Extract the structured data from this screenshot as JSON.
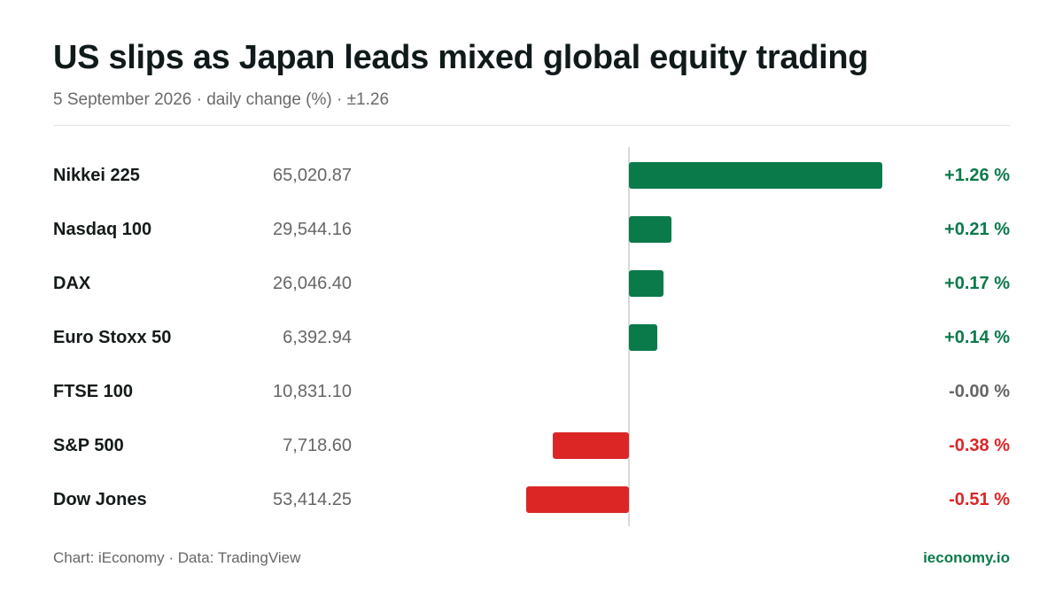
{
  "title": "US slips as Japan leads mixed global equity trading",
  "subtitle": "5 September 2026 · daily change (%) · ±1.26",
  "footer": {
    "source": "Chart: iEconomy · Data: TradingView",
    "brand": "ieconomy.io"
  },
  "colors": {
    "positive": "#0b7a4b",
    "negative": "#dc2626",
    "neutral": "#666666"
  },
  "chart_data": {
    "type": "bar",
    "orientation": "horizontal",
    "x_max_abs": 1.26,
    "rows": [
      {
        "name": "Nikkei 225",
        "price": "65,020.87",
        "value": 1.26,
        "label": "+1.26 %"
      },
      {
        "name": "Nasdaq 100",
        "price": "29,544.16",
        "value": 0.21,
        "label": "+0.21 %"
      },
      {
        "name": "DAX",
        "price": "26,046.40",
        "value": 0.17,
        "label": "+0.17 %"
      },
      {
        "name": "Euro Stoxx 50",
        "price": "6,392.94",
        "value": 0.14,
        "label": "+0.14 %"
      },
      {
        "name": "FTSE 100",
        "price": "10,831.10",
        "value": 0.0,
        "label": "-0.00 %"
      },
      {
        "name": "S&P 500",
        "price": "7,718.60",
        "value": -0.38,
        "label": "-0.38 %"
      },
      {
        "name": "Dow Jones",
        "price": "53,414.25",
        "value": -0.51,
        "label": "-0.51 %"
      }
    ]
  }
}
